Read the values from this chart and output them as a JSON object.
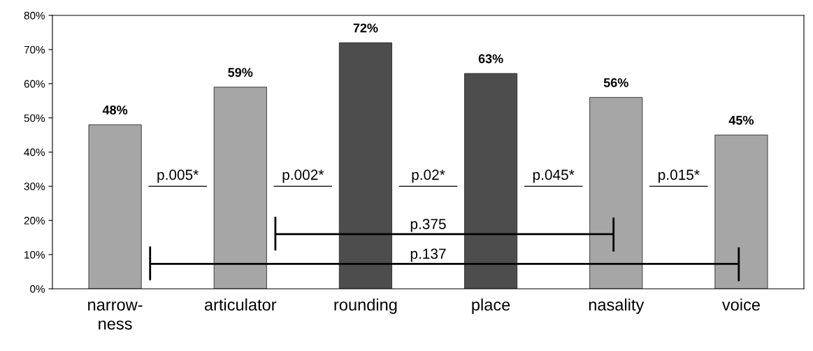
{
  "chart_data": {
    "type": "bar",
    "categories": [
      "narrow-\nness",
      "articulator",
      "rounding",
      "place",
      "nasality",
      "voice"
    ],
    "values": [
      48,
      59,
      72,
      63,
      56,
      45
    ],
    "colors": [
      "#a6a6a6",
      "#a6a6a6",
      "#4d4d4d",
      "#4d4d4d",
      "#a6a6a6",
      "#a6a6a6"
    ],
    "value_labels": [
      "48%",
      "59%",
      "72%",
      "63%",
      "56%",
      "45%"
    ],
    "ylim": [
      0,
      80
    ],
    "yticks": [
      {
        "value": 0,
        "label": "0%"
      },
      {
        "value": 10,
        "label": "10%"
      },
      {
        "value": 20,
        "label": "20%"
      },
      {
        "value": 30,
        "label": "30%"
      },
      {
        "value": 40,
        "label": "40%"
      },
      {
        "value": 50,
        "label": "50%"
      },
      {
        "value": 60,
        "label": "60%"
      },
      {
        "value": 70,
        "label": "70%"
      },
      {
        "value": 80,
        "label": "80%"
      }
    ],
    "annotations": [
      "p.005*",
      "p.002*",
      "p.02*",
      "p.045*",
      "p.015*",
      "p.375",
      "p.137"
    ],
    "grid": false,
    "legend": false
  }
}
